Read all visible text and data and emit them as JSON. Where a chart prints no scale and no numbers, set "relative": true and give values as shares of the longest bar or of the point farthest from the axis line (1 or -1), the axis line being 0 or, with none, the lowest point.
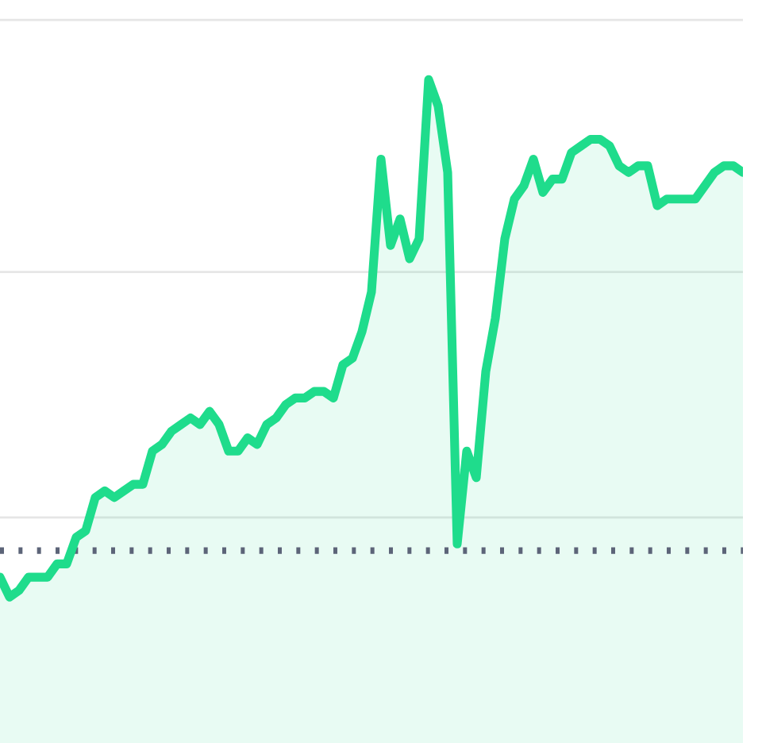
{
  "chart_data": {
    "type": "area",
    "relative": true,
    "categories": [
      null,
      null,
      null,
      null,
      null,
      null,
      null,
      null,
      null,
      null,
      null,
      null,
      null,
      null,
      null,
      null,
      null,
      null,
      null,
      null,
      null,
      null,
      null,
      null,
      null,
      null,
      null,
      null,
      null,
      null,
      null,
      null,
      null,
      null,
      null,
      null,
      null,
      null,
      null,
      null,
      null,
      null,
      null,
      null,
      null,
      null,
      null,
      null,
      null,
      null,
      null,
      null,
      null,
      null,
      null,
      null,
      null,
      null,
      null,
      null,
      null,
      null,
      null,
      null,
      null,
      null,
      null,
      null,
      null,
      null,
      null,
      null,
      null,
      null,
      null,
      null,
      null,
      null,
      null
    ],
    "series": [
      {
        "color": "#1fdc8c",
        "values": [
          0.25,
          0.22,
          0.23,
          0.25,
          0.25,
          0.25,
          0.27,
          0.27,
          0.31,
          0.32,
          0.37,
          0.38,
          0.37,
          0.38,
          0.39,
          0.39,
          0.44,
          0.45,
          0.47,
          0.48,
          0.49,
          0.48,
          0.5,
          0.48,
          0.44,
          0.44,
          0.46,
          0.45,
          0.48,
          0.49,
          0.51,
          0.52,
          0.52,
          0.53,
          0.53,
          0.52,
          0.57,
          0.58,
          0.62,
          0.68,
          0.88,
          0.75,
          0.79,
          0.73,
          0.76,
          1.0,
          0.96,
          0.86,
          0.3,
          0.44,
          0.4,
          0.56,
          0.64,
          0.76,
          0.82,
          0.84,
          0.88,
          0.83,
          0.85,
          0.85,
          0.89,
          0.9,
          0.91,
          0.91,
          0.9,
          0.87,
          0.86,
          0.87,
          0.87,
          0.81,
          0.82,
          0.82,
          0.82,
          0.82,
          0.84,
          0.86,
          0.87,
          0.87,
          0.86
        ]
      }
    ],
    "ref_lines": [
      {
        "axis": "y",
        "value": 0.29,
        "color": "#5c6478",
        "line_style": "dotted"
      },
      {
        "axis": "y",
        "value": 0.34,
        "color": "#e6e6e6",
        "line_style": "solid"
      },
      {
        "axis": "y",
        "value": 0.71,
        "color": "#e6e6e6",
        "line_style": "solid"
      },
      {
        "axis": "y",
        "value": 1.09,
        "color": "#e6e6e6",
        "line_style": "solid"
      }
    ]
  }
}
